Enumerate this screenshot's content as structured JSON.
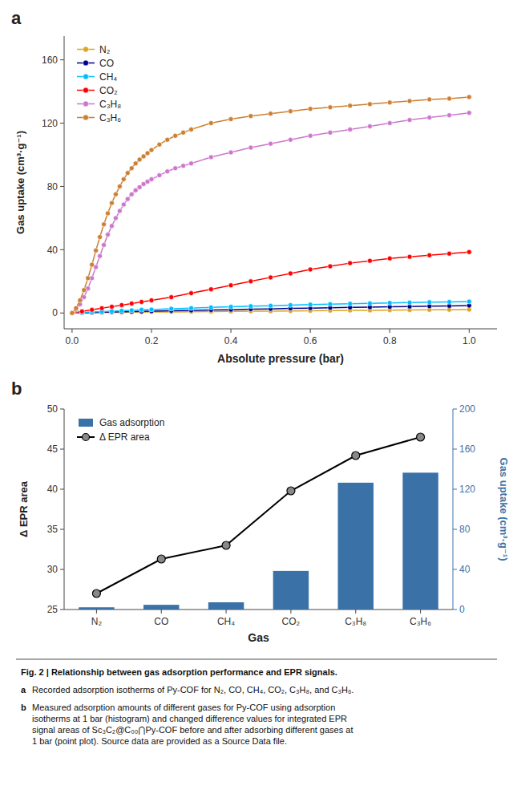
{
  "chart_data": [
    {
      "type": "line",
      "title": "a",
      "x_label": "Absolute pressure (bar)",
      "y_label": "Gas uptake (cm³·g⁻¹)",
      "xlim": [
        -0.02,
        1.07
      ],
      "ylim": [
        -10,
        175
      ],
      "xticks": [
        {
          "value": 0.0,
          "label": "0.0"
        },
        0.2,
        0.4,
        0.6,
        0.8,
        {
          "value": 1.0,
          "label": "1.0"
        }
      ],
      "yticks": [
        0,
        40,
        80,
        120,
        160
      ],
      "grid": false,
      "legend": "upper left",
      "marker": "circle",
      "series": [
        {
          "name": "N₂",
          "color": "#DAA520",
          "x": [
            0.0,
            0.025,
            0.05,
            0.075,
            0.1,
            0.125,
            0.15,
            0.175,
            0.2,
            0.25,
            0.3,
            0.35,
            0.4,
            0.45,
            0.5,
            0.55,
            0.6,
            0.65,
            0.7,
            0.75,
            0.8,
            0.85,
            0.9,
            0.95,
            1.0
          ],
          "values": [
            0.0,
            0.1,
            0.2,
            0.3,
            0.4,
            0.45,
            0.5,
            0.55,
            0.6,
            0.7,
            0.8,
            0.9,
            1.0,
            1.1,
            1.2,
            1.3,
            1.4,
            1.5,
            1.6,
            1.7,
            1.8,
            1.9,
            2.0,
            2.1,
            2.2
          ]
        },
        {
          "name": "CO",
          "color": "#00008B",
          "x": [
            0.0,
            0.025,
            0.05,
            0.075,
            0.1,
            0.125,
            0.15,
            0.175,
            0.2,
            0.25,
            0.3,
            0.35,
            0.4,
            0.45,
            0.5,
            0.55,
            0.6,
            0.65,
            0.7,
            0.75,
            0.8,
            0.85,
            0.9,
            0.95,
            1.0
          ],
          "values": [
            0.0,
            0.15,
            0.3,
            0.5,
            0.6,
            0.75,
            0.9,
            1.0,
            1.1,
            1.4,
            1.6,
            1.9,
            2.1,
            2.4,
            2.6,
            2.9,
            3.1,
            3.3,
            3.5,
            3.7,
            3.9,
            4.1,
            4.3,
            4.5,
            4.7
          ]
        },
        {
          "name": "CH₄",
          "color": "#00BFFF",
          "x": [
            0.0,
            0.025,
            0.05,
            0.075,
            0.1,
            0.125,
            0.15,
            0.175,
            0.2,
            0.25,
            0.3,
            0.35,
            0.4,
            0.45,
            0.5,
            0.55,
            0.6,
            0.65,
            0.7,
            0.75,
            0.8,
            0.85,
            0.9,
            0.95,
            1.0
          ],
          "values": [
            0.0,
            0.3,
            0.6,
            0.9,
            1.1,
            1.4,
            1.7,
            2.0,
            2.2,
            2.7,
            3.1,
            3.5,
            3.9,
            4.3,
            4.6,
            5.0,
            5.3,
            5.6,
            5.9,
            6.1,
            6.4,
            6.6,
            6.8,
            7.0,
            7.2
          ]
        },
        {
          "name": "CO₂",
          "color": "#FF0000",
          "x": [
            0.0,
            0.025,
            0.05,
            0.075,
            0.1,
            0.125,
            0.15,
            0.175,
            0.2,
            0.25,
            0.3,
            0.35,
            0.4,
            0.45,
            0.5,
            0.55,
            0.6,
            0.65,
            0.7,
            0.75,
            0.8,
            0.85,
            0.9,
            0.95,
            1.0
          ],
          "values": [
            0.0,
            1.0,
            2.0,
            3.0,
            4.0,
            5.0,
            6.0,
            7.0,
            8.0,
            10.0,
            12.5,
            15.0,
            17.5,
            20.0,
            22.5,
            25.0,
            27.5,
            29.5,
            31.5,
            33.0,
            34.5,
            35.5,
            36.5,
            37.5,
            38.5
          ]
        },
        {
          "name": "C₃H₈",
          "color": "#CC77CC",
          "x": [
            0.0,
            0.01,
            0.02,
            0.03,
            0.04,
            0.05,
            0.06,
            0.07,
            0.08,
            0.09,
            0.1,
            0.11,
            0.12,
            0.13,
            0.14,
            0.15,
            0.16,
            0.17,
            0.18,
            0.19,
            0.2,
            0.22,
            0.24,
            0.26,
            0.28,
            0.3,
            0.35,
            0.4,
            0.45,
            0.5,
            0.55,
            0.6,
            0.65,
            0.7,
            0.75,
            0.8,
            0.85,
            0.9,
            0.95,
            1.0
          ],
          "values": [
            0.0,
            2.0,
            5.5,
            10.0,
            15.5,
            22.0,
            29.0,
            36.0,
            43.0,
            49.5,
            55.0,
            60.0,
            64.5,
            68.5,
            72.0,
            75.0,
            77.5,
            79.5,
            81.5,
            83.0,
            84.5,
            87.0,
            89.5,
            91.5,
            93.0,
            94.5,
            98.5,
            101.5,
            104.5,
            107.0,
            109.5,
            112.0,
            114.0,
            116.0,
            118.0,
            120.0,
            122.0,
            123.5,
            125.0,
            126.5
          ]
        },
        {
          "name": "C₃H₆",
          "color": "#CD7F32",
          "x": [
            0.0,
            0.01,
            0.02,
            0.03,
            0.04,
            0.05,
            0.06,
            0.07,
            0.08,
            0.09,
            0.1,
            0.11,
            0.12,
            0.13,
            0.14,
            0.15,
            0.16,
            0.17,
            0.18,
            0.19,
            0.2,
            0.22,
            0.24,
            0.26,
            0.28,
            0.3,
            0.35,
            0.4,
            0.45,
            0.5,
            0.55,
            0.6,
            0.65,
            0.7,
            0.75,
            0.8,
            0.85,
            0.9,
            0.95,
            1.0
          ],
          "values": [
            0.0,
            3.0,
            8.0,
            14.5,
            22.0,
            30.5,
            39.5,
            48.0,
            56.0,
            63.0,
            69.5,
            75.0,
            80.0,
            84.5,
            88.5,
            91.5,
            94.5,
            97.0,
            99.0,
            101.0,
            103.0,
            106.5,
            109.5,
            112.0,
            114.0,
            116.0,
            120.0,
            122.5,
            124.5,
            126.0,
            127.5,
            129.0,
            130.0,
            131.0,
            132.0,
            133.0,
            134.0,
            135.0,
            135.5,
            136.5
          ]
        }
      ]
    },
    {
      "type": "bar",
      "title": "b",
      "x_label": "Gas",
      "y_label": "Δ EPR area",
      "y2_label": "Gas uptake (cm³·g⁻¹)",
      "categories": [
        "N₂",
        "CO",
        "CH₄",
        "CO₂",
        "C₃H₈",
        "C₃H₆"
      ],
      "ylim": [
        25,
        50
      ],
      "yticks": [
        25,
        30,
        35,
        40,
        45,
        50
      ],
      "y2lim": [
        0,
        200
      ],
      "y2ticks": [
        0,
        40,
        80,
        120,
        160,
        200
      ],
      "grid": false,
      "legend": "upper left",
      "series": [
        {
          "name": "Gas adsorption",
          "type": "bar",
          "axis": "y2",
          "color": "#3A72A7",
          "values": [
            2.2,
            4.7,
            7.2,
            38.5,
            126.5,
            136.5
          ]
        },
        {
          "name": "Δ EPR area",
          "type": "line",
          "marker": "circle",
          "color": "#000000",
          "values": [
            27.0,
            31.3,
            33.0,
            39.8,
            44.2,
            46.5
          ]
        }
      ],
      "annotations": [
        "Fig. 2 | Relationship between gas adsorption performance and EPR signals.",
        "a",
        "Recorded adsorption isotherms of Py-COF for N₂, CO, CH₄, CO₂, C₃H₈, and C₃H₆.",
        "b",
        "Measured adsorption amounts of different gases for Py-COF using adsorption\nisotherms at 1 bar (histogram) and changed difference values for integrated EPR\nsignal areas of Sc₃C₂@C₀₀⋂Py-COF before and after adsorbing different gases at\n1 bar (point plot). Source data are provided as a Source Data file."
      ]
    }
  ]
}
